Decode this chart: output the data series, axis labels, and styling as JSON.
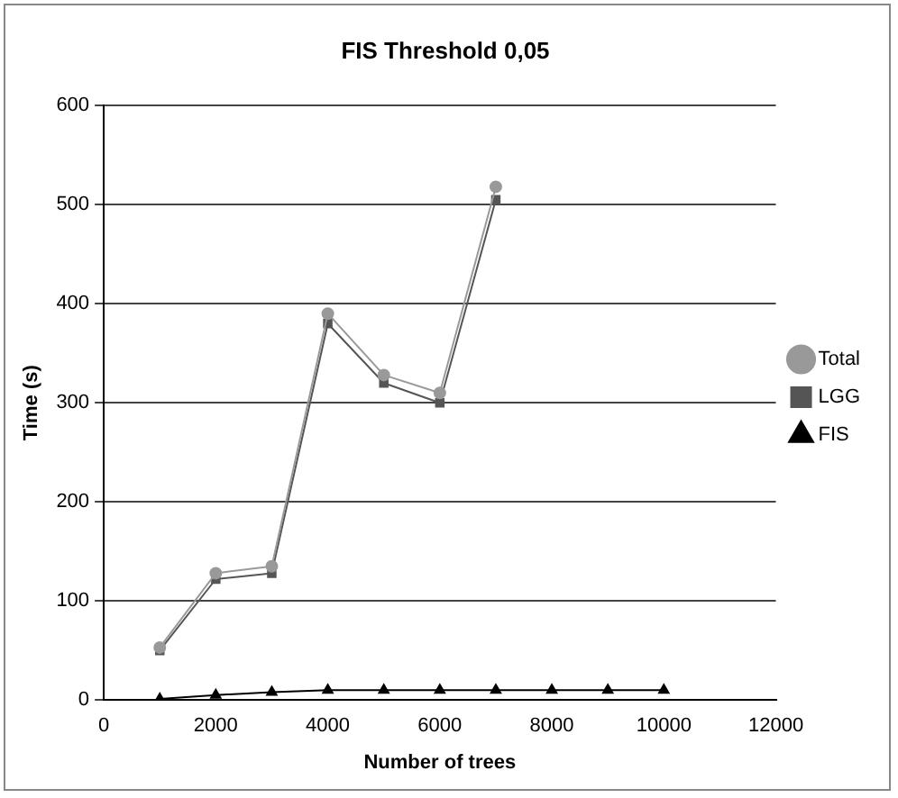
{
  "chart_data": {
    "type": "line",
    "title": "FIS Threshold 0,05",
    "xlabel": "Number of trees",
    "ylabel": "Time (s)",
    "xlim": [
      0,
      12000
    ],
    "xticks": [
      0,
      2000,
      4000,
      6000,
      8000,
      10000,
      12000
    ],
    "ylim": [
      0,
      600
    ],
    "yticks": [
      0,
      100,
      200,
      300,
      400,
      500,
      600
    ],
    "grid": "y",
    "legend": "right",
    "line_style": "solid",
    "series": [
      {
        "name": "FIS",
        "color": "#000000",
        "marker": "triangle",
        "x": [
          1000,
          2000,
          3000,
          4000,
          5000,
          6000,
          7000,
          8000,
          9000,
          10000
        ],
        "values": [
          1,
          5,
          8,
          10,
          10,
          10,
          10,
          10,
          10,
          10
        ]
      },
      {
        "name": "LGG",
        "color": "#555555",
        "marker": "square",
        "x": [
          1000,
          2000,
          3000,
          4000,
          5000,
          6000,
          7000
        ],
        "values": [
          50,
          122,
          128,
          380,
          320,
          300,
          505
        ]
      },
      {
        "name": "Total",
        "color": "#999999",
        "marker": "circle",
        "x": [
          1000,
          2000,
          3000,
          4000,
          5000,
          6000,
          7000
        ],
        "values": [
          53,
          128,
          135,
          390,
          328,
          310,
          518
        ]
      }
    ]
  }
}
